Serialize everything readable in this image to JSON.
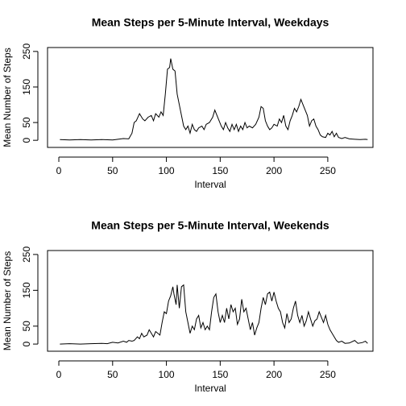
{
  "chart_data": [
    {
      "type": "line",
      "title": "Mean Steps per 5-Minute Interval, Weekdays",
      "xlabel": "Interval",
      "ylabel": "Mean Number of Steps",
      "color": "#000000",
      "xlim": [
        -10.5,
        292
      ],
      "ylim": [
        -20,
        261
      ],
      "xticks": [
        0,
        50,
        100,
        150,
        200,
        250
      ],
      "yticks": [
        0,
        50,
        150,
        250
      ],
      "x": [
        1,
        10,
        20,
        30,
        40,
        50,
        55,
        60,
        65,
        68,
        70,
        72,
        75,
        78,
        80,
        83,
        86,
        88,
        90,
        93,
        95,
        97,
        99,
        101,
        103,
        104,
        106,
        108,
        110,
        112,
        114,
        116,
        118,
        120,
        122,
        124,
        126,
        128,
        130,
        133,
        135,
        137,
        140,
        143,
        145,
        147,
        149,
        151,
        153,
        155,
        157,
        159,
        161,
        163,
        165,
        167,
        169,
        171,
        173,
        175,
        177,
        180,
        183,
        186,
        188,
        190,
        192,
        194,
        196,
        198,
        200,
        203,
        205,
        207,
        209,
        211,
        213,
        215,
        217,
        219,
        221,
        223,
        225,
        227,
        229,
        231,
        233,
        235,
        237,
        239,
        241,
        243,
        245,
        248,
        250,
        252,
        254,
        256,
        258,
        260,
        263,
        266,
        270,
        275,
        280,
        285,
        287
      ],
      "values": [
        2,
        1,
        2,
        1,
        2,
        1,
        3,
        5,
        4,
        20,
        50,
        55,
        75,
        60,
        55,
        65,
        70,
        55,
        75,
        65,
        80,
        70,
        130,
        200,
        205,
        230,
        200,
        195,
        130,
        100,
        70,
        40,
        30,
        40,
        20,
        45,
        30,
        25,
        35,
        40,
        30,
        45,
        50,
        65,
        85,
        70,
        55,
        40,
        30,
        50,
        35,
        25,
        45,
        30,
        45,
        25,
        40,
        30,
        50,
        35,
        40,
        35,
        45,
        65,
        95,
        90,
        55,
        40,
        30,
        35,
        45,
        40,
        60,
        50,
        70,
        40,
        30,
        55,
        70,
        90,
        80,
        95,
        115,
        100,
        85,
        70,
        40,
        55,
        60,
        40,
        30,
        15,
        10,
        8,
        20,
        15,
        25,
        10,
        20,
        8,
        5,
        8,
        4,
        3,
        2,
        3,
        2
      ]
    },
    {
      "type": "line",
      "title": "Mean Steps per 5-Minute Interval, Weekends",
      "xlabel": "Interval",
      "ylabel": "Mean Number of Steps",
      "color": "#000000",
      "xlim": [
        -10.5,
        292
      ],
      "ylim": [
        -20,
        261
      ],
      "xticks": [
        0,
        50,
        100,
        150,
        200,
        250
      ],
      "yticks": [
        0,
        50,
        150,
        250
      ],
      "x": [
        1,
        10,
        20,
        30,
        40,
        45,
        50,
        55,
        60,
        63,
        65,
        68,
        70,
        73,
        75,
        77,
        79,
        82,
        84,
        86,
        88,
        90,
        92,
        94,
        96,
        98,
        100,
        102,
        104,
        106,
        107,
        109,
        110,
        112,
        114,
        116,
        118,
        120,
        122,
        124,
        126,
        128,
        130,
        132,
        134,
        136,
        138,
        140,
        142,
        144,
        146,
        148,
        150,
        152,
        154,
        156,
        158,
        160,
        162,
        164,
        166,
        168,
        170,
        172,
        174,
        176,
        178,
        180,
        182,
        184,
        186,
        188,
        190,
        192,
        194,
        196,
        198,
        200,
        202,
        204,
        206,
        208,
        210,
        212,
        214,
        216,
        218,
        220,
        222,
        224,
        226,
        228,
        230,
        232,
        234,
        236,
        238,
        240,
        242,
        244,
        246,
        248,
        250,
        252,
        254,
        256,
        258,
        260,
        263,
        266,
        270,
        275,
        278,
        282,
        285,
        287
      ],
      "values": [
        0,
        1,
        0,
        1,
        2,
        1,
        5,
        3,
        8,
        5,
        10,
        8,
        10,
        20,
        15,
        30,
        20,
        25,
        40,
        30,
        20,
        35,
        30,
        25,
        60,
        90,
        85,
        120,
        135,
        160,
        140,
        110,
        165,
        100,
        160,
        165,
        90,
        60,
        30,
        50,
        40,
        70,
        80,
        45,
        60,
        40,
        50,
        40,
        90,
        130,
        140,
        90,
        60,
        80,
        60,
        100,
        70,
        110,
        90,
        100,
        55,
        70,
        125,
        90,
        100,
        70,
        40,
        60,
        25,
        45,
        60,
        100,
        130,
        110,
        140,
        145,
        120,
        145,
        120,
        100,
        90,
        60,
        45,
        85,
        60,
        70,
        100,
        120,
        80,
        60,
        80,
        50,
        65,
        90,
        70,
        50,
        65,
        70,
        90,
        75,
        60,
        80,
        55,
        40,
        30,
        20,
        10,
        5,
        8,
        2,
        3,
        10,
        2,
        4,
        8,
        2
      ]
    }
  ]
}
